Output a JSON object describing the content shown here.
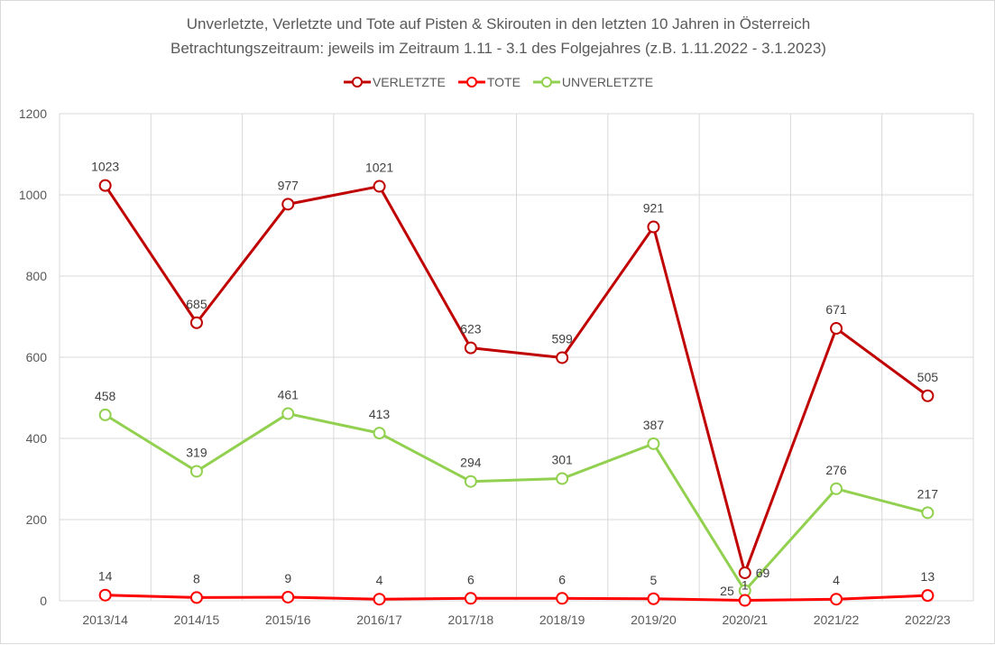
{
  "chart_data": {
    "type": "line",
    "title": "Unverletzte, Verletzte und Tote auf Pisten & Skirouten in den letzten 10 Jahren in Österreich",
    "subtitle": "Betrachtungszeitraum: jeweils im Zeitraum 1.11 - 3.1 des Folgejahres (z.B. 1.11.2022 - 3.1.2023)",
    "categories": [
      "2013/14",
      "2014/15",
      "2015/16",
      "2016/17",
      "2017/18",
      "2018/19",
      "2019/20",
      "2020/21",
      "2021/22",
      "2022/23"
    ],
    "ylim": [
      0,
      1200
    ],
    "yticks": [
      0,
      200,
      400,
      600,
      800,
      1000,
      1200
    ],
    "grid": true,
    "legend_position": "top",
    "series": [
      {
        "name": "VERLETZTE",
        "color": "#c00000",
        "values": [
          1023,
          685,
          977,
          1021,
          623,
          599,
          921,
          69,
          671,
          505
        ]
      },
      {
        "name": "TOTE",
        "color": "#ff0000",
        "values": [
          14,
          8,
          9,
          4,
          6,
          6,
          5,
          1,
          4,
          13
        ]
      },
      {
        "name": "UNVERLETZTE",
        "color": "#92d050",
        "values": [
          458,
          319,
          461,
          413,
          294,
          301,
          387,
          25,
          276,
          217
        ]
      }
    ]
  }
}
